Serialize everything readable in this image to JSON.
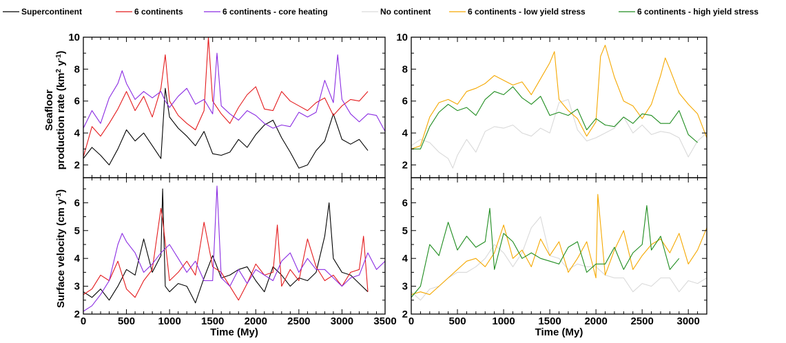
{
  "legend": [
    {
      "label": "Supercontinent",
      "color": "#000000"
    },
    {
      "label": "6 continents",
      "color": "#e41a1c"
    },
    {
      "label": "6 continents - core heating",
      "color": "#8a2be2"
    },
    {
      "label": "No continent",
      "color": "#d9d9d9"
    },
    {
      "label": "6 continents - low yield stress",
      "color": "#f5a800"
    },
    {
      "label": "6 continents - high yield stress",
      "color": "#1e8c1e"
    }
  ],
  "chart_data": [
    {
      "type": "line",
      "panel": "top-left",
      "ylabel_lines": [
        "Seafloor",
        "production rate (km",
        "2",
        " y",
        "-1",
        ")"
      ],
      "xlim": [
        0,
        3500
      ],
      "ylim": [
        1.2,
        10
      ],
      "yticks": [
        2,
        4,
        6,
        8,
        10
      ],
      "xticks": [],
      "series": [
        {
          "name": "Supercontinent",
          "color": "#000000",
          "x": [
            0,
            100,
            200,
            300,
            400,
            500,
            600,
            700,
            800,
            900,
            950,
            1000,
            1100,
            1200,
            1300,
            1400,
            1500,
            1600,
            1700,
            1800,
            1900,
            2000,
            2100,
            2200,
            2300,
            2400,
            2500,
            2600,
            2700,
            2800,
            2900,
            3000,
            3100,
            3200,
            3300
          ],
          "y": [
            2.4,
            3.1,
            2.6,
            2.0,
            3.0,
            4.2,
            3.5,
            4.0,
            3.2,
            2.4,
            6.8,
            5.0,
            4.3,
            3.8,
            3.2,
            4.1,
            2.7,
            2.6,
            2.8,
            3.6,
            3.1,
            3.9,
            4.5,
            4.8,
            3.7,
            2.8,
            1.8,
            2.0,
            2.9,
            3.5,
            5.2,
            3.6,
            3.3,
            3.6,
            2.9
          ]
        },
        {
          "name": "6 continents",
          "color": "#e41a1c",
          "x": [
            0,
            100,
            200,
            300,
            400,
            500,
            600,
            700,
            800,
            900,
            950,
            1000,
            1100,
            1200,
            1300,
            1400,
            1450,
            1500,
            1600,
            1700,
            1800,
            1900,
            2000,
            2100,
            2200,
            2300,
            2400,
            2500,
            2600,
            2700,
            2800,
            2900,
            3000,
            3100,
            3200,
            3300
          ],
          "y": [
            2.5,
            4.4,
            3.8,
            4.6,
            5.5,
            6.6,
            5.4,
            6.3,
            5.0,
            6.8,
            8.9,
            6.0,
            5.1,
            4.6,
            4.2,
            5.4,
            10.0,
            6.0,
            5.2,
            4.6,
            5.6,
            6.4,
            6.9,
            5.5,
            5.4,
            6.6,
            6.0,
            5.7,
            5.4,
            5.9,
            6.2,
            5.1,
            5.7,
            6.1,
            6.0,
            6.6
          ]
        },
        {
          "name": "6 continents - core heating",
          "color": "#8a2be2",
          "x": [
            0,
            100,
            200,
            300,
            400,
            450,
            500,
            600,
            700,
            800,
            900,
            950,
            1000,
            1100,
            1200,
            1300,
            1400,
            1500,
            1550,
            1600,
            1700,
            1800,
            1900,
            2000,
            2100,
            2200,
            2300,
            2400,
            2500,
            2600,
            2700,
            2800,
            2900,
            2950,
            3000,
            3100,
            3200,
            3300,
            3400,
            3500
          ],
          "y": [
            4.3,
            5.4,
            4.6,
            6.2,
            7.1,
            7.9,
            7.1,
            6.1,
            6.6,
            6.2,
            6.6,
            6.0,
            5.6,
            6.3,
            6.8,
            5.8,
            6.1,
            5.2,
            9.0,
            5.7,
            5.2,
            4.8,
            5.4,
            5.1,
            4.6,
            4.3,
            4.5,
            4.4,
            5.3,
            5.0,
            5.3,
            7.3,
            5.9,
            8.9,
            6.1,
            5.2,
            4.7,
            5.2,
            5.1,
            4.1
          ]
        }
      ]
    },
    {
      "type": "line",
      "panel": "top-right",
      "xlim": [
        0,
        3200
      ],
      "ylim": [
        1.2,
        10
      ],
      "yticks": [
        2,
        4,
        6,
        8,
        10
      ],
      "xticks": [],
      "series": [
        {
          "name": "No continent",
          "color": "#d9d9d9",
          "x": [
            0,
            100,
            200,
            300,
            400,
            450,
            500,
            600,
            700,
            800,
            900,
            1000,
            1100,
            1200,
            1300,
            1400,
            1500,
            1600,
            1700,
            1800,
            1900,
            2000,
            2100,
            2200,
            2300,
            2400,
            2500,
            2600,
            2700,
            2800,
            2900,
            3000,
            3100,
            3200
          ],
          "y": [
            3.2,
            3.6,
            3.4,
            2.8,
            2.4,
            1.8,
            2.6,
            3.6,
            2.8,
            4.1,
            4.4,
            4.3,
            4.5,
            4.0,
            3.8,
            4.3,
            4.0,
            5.9,
            6.1,
            4.2,
            3.5,
            3.7,
            4.0,
            4.3,
            5.0,
            4.0,
            4.5,
            3.9,
            4.1,
            4.0,
            3.7,
            2.5,
            3.5,
            4.0
          ]
        },
        {
          "name": "6 continents - low yield stress",
          "color": "#f5a800",
          "x": [
            0,
            100,
            200,
            300,
            400,
            500,
            600,
            700,
            800,
            900,
            1000,
            1100,
            1200,
            1300,
            1400,
            1500,
            1550,
            1600,
            1700,
            1800,
            1900,
            2000,
            2050,
            2100,
            2200,
            2300,
            2400,
            2500,
            2600,
            2700,
            2750,
            2800,
            2900,
            3000,
            3100,
            3200
          ],
          "y": [
            3.0,
            3.2,
            5.0,
            5.9,
            6.1,
            5.8,
            6.6,
            6.8,
            7.1,
            7.6,
            7.3,
            7.0,
            7.2,
            6.4,
            7.4,
            8.4,
            9.1,
            6.1,
            5.4,
            4.9,
            3.8,
            4.7,
            8.8,
            9.5,
            7.5,
            6.0,
            5.7,
            4.9,
            5.8,
            7.6,
            8.7,
            8.0,
            6.5,
            5.8,
            5.2,
            3.7
          ]
        },
        {
          "name": "6 continents - high yield stress",
          "color": "#1e8c1e",
          "x": [
            0,
            100,
            200,
            300,
            400,
            500,
            600,
            700,
            800,
            900,
            1000,
            1100,
            1200,
            1300,
            1400,
            1500,
            1600,
            1700,
            1800,
            1900,
            2000,
            2100,
            2200,
            2300,
            2400,
            2500,
            2600,
            2700,
            2800,
            2900,
            3000,
            3100
          ],
          "y": [
            3.0,
            3.0,
            4.4,
            5.3,
            5.8,
            5.4,
            5.6,
            5.1,
            6.1,
            6.6,
            6.4,
            6.9,
            6.2,
            5.8,
            6.3,
            5.1,
            5.3,
            5.1,
            5.5,
            4.2,
            4.9,
            4.5,
            4.4,
            5.0,
            4.6,
            5.2,
            5.1,
            4.6,
            4.6,
            5.4,
            3.9,
            3.4
          ]
        }
      ]
    },
    {
      "type": "line",
      "panel": "bottom-left",
      "ylabel_lines": [
        "Surface velocity (cm y",
        "-1",
        ")"
      ],
      "xlabel": "Time (My)",
      "xlim": [
        0,
        3500
      ],
      "ylim": [
        2,
        6.9
      ],
      "yticks": [
        2,
        3,
        4,
        5,
        6
      ],
      "xticks": [
        0,
        500,
        1000,
        1500,
        2000,
        2500,
        3000,
        3500
      ],
      "series": [
        {
          "name": "Supercontinent",
          "color": "#000000",
          "x": [
            0,
            100,
            200,
            300,
            400,
            500,
            600,
            700,
            800,
            900,
            920,
            950,
            1000,
            1100,
            1200,
            1300,
            1400,
            1500,
            1600,
            1700,
            1800,
            1900,
            2000,
            2100,
            2200,
            2300,
            2400,
            2500,
            2600,
            2700,
            2800,
            2850,
            2900,
            3000,
            3100,
            3200,
            3300
          ],
          "y": [
            2.8,
            2.6,
            2.9,
            2.5,
            3.0,
            3.6,
            3.4,
            4.7,
            3.5,
            4.1,
            6.5,
            3.0,
            2.8,
            3.1,
            3.0,
            2.4,
            3.3,
            4.1,
            3.3,
            3.4,
            3.6,
            3.7,
            3.2,
            2.8,
            3.7,
            3.4,
            3.0,
            3.3,
            3.2,
            3.5,
            4.8,
            6.0,
            4.0,
            3.5,
            3.4,
            3.1,
            2.8
          ]
        },
        {
          "name": "6 continents",
          "color": "#e41a1c",
          "x": [
            0,
            100,
            200,
            300,
            400,
            500,
            600,
            700,
            800,
            900,
            920,
            1000,
            1100,
            1200,
            1300,
            1400,
            1500,
            1600,
            1700,
            1800,
            1900,
            2000,
            2100,
            2200,
            2250,
            2300,
            2400,
            2500,
            2600,
            2700,
            2800,
            2900,
            3000,
            3100,
            3200,
            3250,
            3300
          ],
          "y": [
            2.7,
            2.9,
            3.4,
            3.2,
            3.9,
            2.9,
            2.6,
            3.2,
            3.6,
            5.8,
            5.4,
            3.2,
            3.5,
            3.9,
            3.4,
            5.3,
            3.7,
            3.5,
            3.0,
            2.5,
            3.1,
            3.8,
            3.4,
            3.5,
            5.2,
            3.0,
            3.6,
            3.2,
            4.7,
            3.7,
            3.2,
            3.4,
            3.0,
            3.5,
            3.6,
            4.8,
            2.8
          ]
        },
        {
          "name": "6 continents - core heating",
          "color": "#8a2be2",
          "x": [
            0,
            100,
            200,
            300,
            400,
            450,
            500,
            600,
            700,
            800,
            900,
            1000,
            1100,
            1200,
            1300,
            1400,
            1500,
            1550,
            1600,
            1700,
            1800,
            1900,
            2000,
            2100,
            2200,
            2300,
            2400,
            2500,
            2600,
            2700,
            2800,
            2900,
            3000,
            3100,
            3200,
            3300,
            3400,
            3500
          ],
          "y": [
            2.1,
            2.3,
            2.7,
            3.2,
            4.5,
            4.9,
            4.6,
            4.2,
            3.5,
            3.8,
            4.2,
            4.5,
            4.0,
            3.5,
            3.9,
            3.2,
            3.2,
            6.6,
            3.3,
            3.0,
            3.6,
            3.1,
            3.6,
            3.4,
            3.2,
            3.9,
            4.2,
            3.5,
            4.0,
            3.6,
            3.6,
            3.3,
            3.0,
            3.3,
            3.4,
            4.2,
            3.6,
            3.9
          ]
        }
      ]
    },
    {
      "type": "line",
      "panel": "bottom-right",
      "xlabel": "Time (My)",
      "xlim": [
        0,
        3200
      ],
      "ylim": [
        2,
        6.9
      ],
      "yticks": [
        2,
        3,
        4,
        5,
        6
      ],
      "xticks": [
        0,
        500,
        1000,
        1500,
        2000,
        2500,
        3000
      ],
      "series": [
        {
          "name": "No continent",
          "color": "#d9d9d9",
          "x": [
            0,
            100,
            200,
            300,
            400,
            500,
            600,
            700,
            800,
            900,
            1000,
            1100,
            1200,
            1300,
            1400,
            1500,
            1600,
            1700,
            1800,
            1900,
            2000,
            2100,
            2200,
            2300,
            2400,
            2500,
            2600,
            2700,
            2800,
            2900,
            3000,
            3100,
            3200
          ],
          "y": [
            2.8,
            2.5,
            2.9,
            3.0,
            3.3,
            3.5,
            3.5,
            3.7,
            4.0,
            4.5,
            4.2,
            3.7,
            4.2,
            5.1,
            5.5,
            4.1,
            4.0,
            3.6,
            3.8,
            3.7,
            3.7,
            3.4,
            3.3,
            3.3,
            2.8,
            3.1,
            3.0,
            3.3,
            3.3,
            2.8,
            3.2,
            3.1,
            3.3
          ]
        },
        {
          "name": "6 continents - low yield stress",
          "color": "#f5a800",
          "x": [
            0,
            100,
            200,
            300,
            400,
            500,
            600,
            700,
            800,
            900,
            1000,
            1100,
            1200,
            1300,
            1400,
            1500,
            1600,
            1700,
            1800,
            1900,
            2000,
            2020,
            2100,
            2200,
            2300,
            2400,
            2500,
            2600,
            2700,
            2800,
            2900,
            3000,
            3100,
            3200
          ],
          "y": [
            2.7,
            2.8,
            2.7,
            3.0,
            3.3,
            3.6,
            3.9,
            4.0,
            3.7,
            4.2,
            5.2,
            4.0,
            4.3,
            3.7,
            4.7,
            4.1,
            4.6,
            3.5,
            4.0,
            4.6,
            3.3,
            6.3,
            3.4,
            4.3,
            5.0,
            3.6,
            4.1,
            4.5,
            4.7,
            4.2,
            4.9,
            3.8,
            4.3,
            5.1
          ]
        },
        {
          "name": "6 continents - high yield stress",
          "color": "#1e8c1e",
          "x": [
            0,
            100,
            200,
            300,
            400,
            500,
            600,
            700,
            800,
            850,
            900,
            1000,
            1100,
            1200,
            1300,
            1400,
            1500,
            1600,
            1700,
            1800,
            1900,
            2000,
            2100,
            2200,
            2300,
            2400,
            2500,
            2550,
            2600,
            2700,
            2800,
            2900
          ],
          "y": [
            2.6,
            3.0,
            4.5,
            4.1,
            5.3,
            4.3,
            4.8,
            4.4,
            4.6,
            5.8,
            3.6,
            4.9,
            4.6,
            4.0,
            4.2,
            4.0,
            3.9,
            3.8,
            4.4,
            4.6,
            3.5,
            3.8,
            3.8,
            4.4,
            3.6,
            4.2,
            4.5,
            5.9,
            4.3,
            4.8,
            3.6,
            4.0
          ]
        }
      ]
    }
  ]
}
